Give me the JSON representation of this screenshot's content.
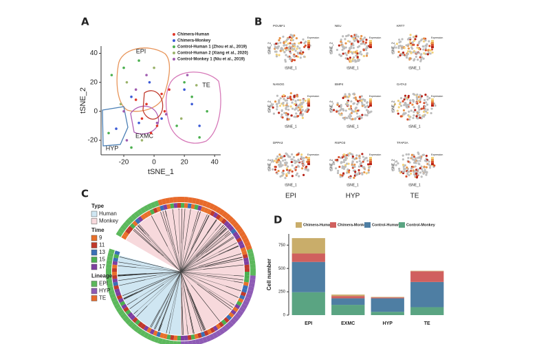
{
  "panel_labels": [
    "A",
    "B",
    "C",
    "D"
  ],
  "chart_data": [
    {
      "type": "scatter",
      "xlabel": "tSNE_1",
      "ylabel": "tSNE_2",
      "xlim": [
        -35,
        44
      ],
      "ylim": [
        -30,
        45
      ],
      "xticks": [
        -20,
        0,
        20,
        40
      ],
      "yticks": [
        -20,
        0,
        20,
        40
      ],
      "annotations": [
        {
          "text": "EPI",
          "color": "#e8955a"
        },
        {
          "text": "TE",
          "color": "#d678b8"
        },
        {
          "text": "HYP",
          "color": "#4a7fb5"
        },
        {
          "text": "EXMC",
          "color": "#b05fb5"
        }
      ],
      "series": [
        {
          "name": "Chimera-Human",
          "color": "#e0382b",
          "x": [
            -5,
            2,
            5,
            -8,
            -12,
            10,
            -2,
            7
          ],
          "y": [
            5,
            -10,
            12,
            -5,
            8,
            15,
            -15,
            0
          ]
        },
        {
          "name": "Chimera-Monkey",
          "color": "#3d5bd6",
          "x": [
            -15,
            -10,
            -3,
            25,
            30,
            20,
            -25,
            5
          ],
          "y": [
            10,
            -8,
            20,
            5,
            -10,
            15,
            -12,
            -5
          ]
        },
        {
          "name": "Control-Human 1 (Zhou et al., 2019)",
          "color": "#4cb050",
          "x": [
            -20,
            -28,
            -10,
            15,
            25,
            35,
            20,
            -15,
            -30,
            30
          ],
          "y": [
            30,
            25,
            35,
            -10,
            10,
            0,
            20,
            -25,
            -15,
            -18
          ]
        },
        {
          "name": "Control-Human 2 (Xiang et al., 2020)",
          "color": "#9bb36b",
          "x": [
            -18,
            -8,
            0,
            18,
            28,
            -22
          ],
          "y": [
            20,
            -20,
            30,
            -5,
            18,
            5
          ]
        },
        {
          "name": "Control-Monkey 1 (Niu et al., 2019)",
          "color": "#a05cb0",
          "x": [
            -12,
            -5,
            2,
            -18,
            22,
            -20,
            8
          ],
          "y": [
            15,
            25,
            -8,
            -20,
            25,
            0,
            -2
          ]
        }
      ]
    },
    {
      "type": "bar",
      "stacked": true,
      "ylabel": "Cell number",
      "legend": "top",
      "categories": [
        "EPI",
        "EXMC",
        "HYP",
        "TE"
      ],
      "ylim": [
        0,
        870
      ],
      "yticks": [
        0,
        250,
        500,
        750
      ],
      "series": [
        {
          "name": "Control-Monkey",
          "color": "#5aa482",
          "values": [
            245,
            110,
            35,
            85
          ]
        },
        {
          "name": "Control-Human",
          "color": "#4e7ea3",
          "values": [
            325,
            70,
            145,
            270
          ]
        },
        {
          "name": "Chimera-Monkey",
          "color": "#d0605e",
          "values": [
            90,
            25,
            10,
            115
          ]
        },
        {
          "name": "Chimera-Human",
          "color": "#c9ad6a",
          "values": [
            165,
            15,
            5,
            5
          ]
        }
      ]
    }
  ],
  "feature_plots": {
    "genes": [
      "POU5F1",
      "NEU",
      "KRT7",
      "NANOG",
      "BMP4",
      "GATA3",
      "DPPA3",
      "RSPO3",
      "TFAP2A"
    ],
    "xlabel": "tSNE_1",
    "ylabel": "tSNE_2",
    "legend_title": "Expression",
    "columns": [
      "EPI",
      "HYP",
      "TE"
    ]
  },
  "dendrogram": {
    "legend": [
      {
        "title": "Type",
        "items": [
          {
            "label": "Human",
            "color": "#cfe6f2"
          },
          {
            "label": "Monkey",
            "color": "#f7d9dc"
          }
        ]
      },
      {
        "title": "Time",
        "items": [
          {
            "label": "9",
            "color": "#e8702a"
          },
          {
            "label": "11",
            "color": "#c0392b"
          },
          {
            "label": "13",
            "color": "#3b6fb6"
          },
          {
            "label": "15",
            "color": "#4caf50"
          },
          {
            "label": "17",
            "color": "#7e3fa0"
          }
        ]
      },
      {
        "title": "Lineage",
        "items": [
          {
            "label": "EPI",
            "color": "#5cb85c"
          },
          {
            "label": "HYP",
            "color": "#8e5bb5"
          },
          {
            "label": "TE",
            "color": "#e86a2a"
          }
        ]
      }
    ]
  }
}
